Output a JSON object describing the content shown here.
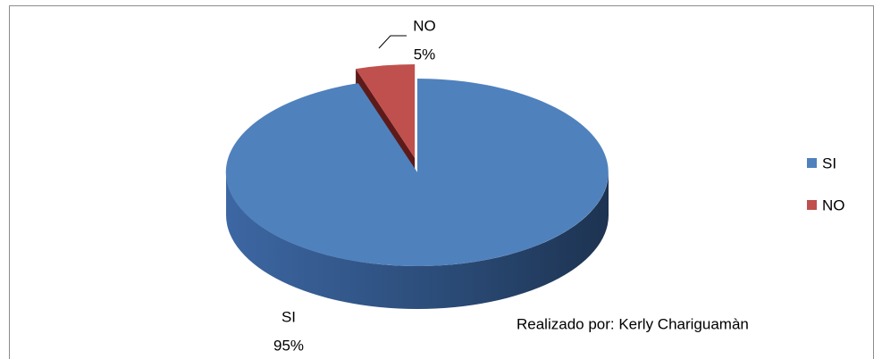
{
  "chart_data": {
    "type": "pie",
    "categories": [
      "SI",
      "NO"
    ],
    "values": [
      95,
      5
    ],
    "value_labels": [
      "95%",
      "5%"
    ],
    "colors": [
      "#4f81bd",
      "#c0504d"
    ],
    "annotation": "Realizado por: Kerly Chariguamàn",
    "legend": "right"
  }
}
